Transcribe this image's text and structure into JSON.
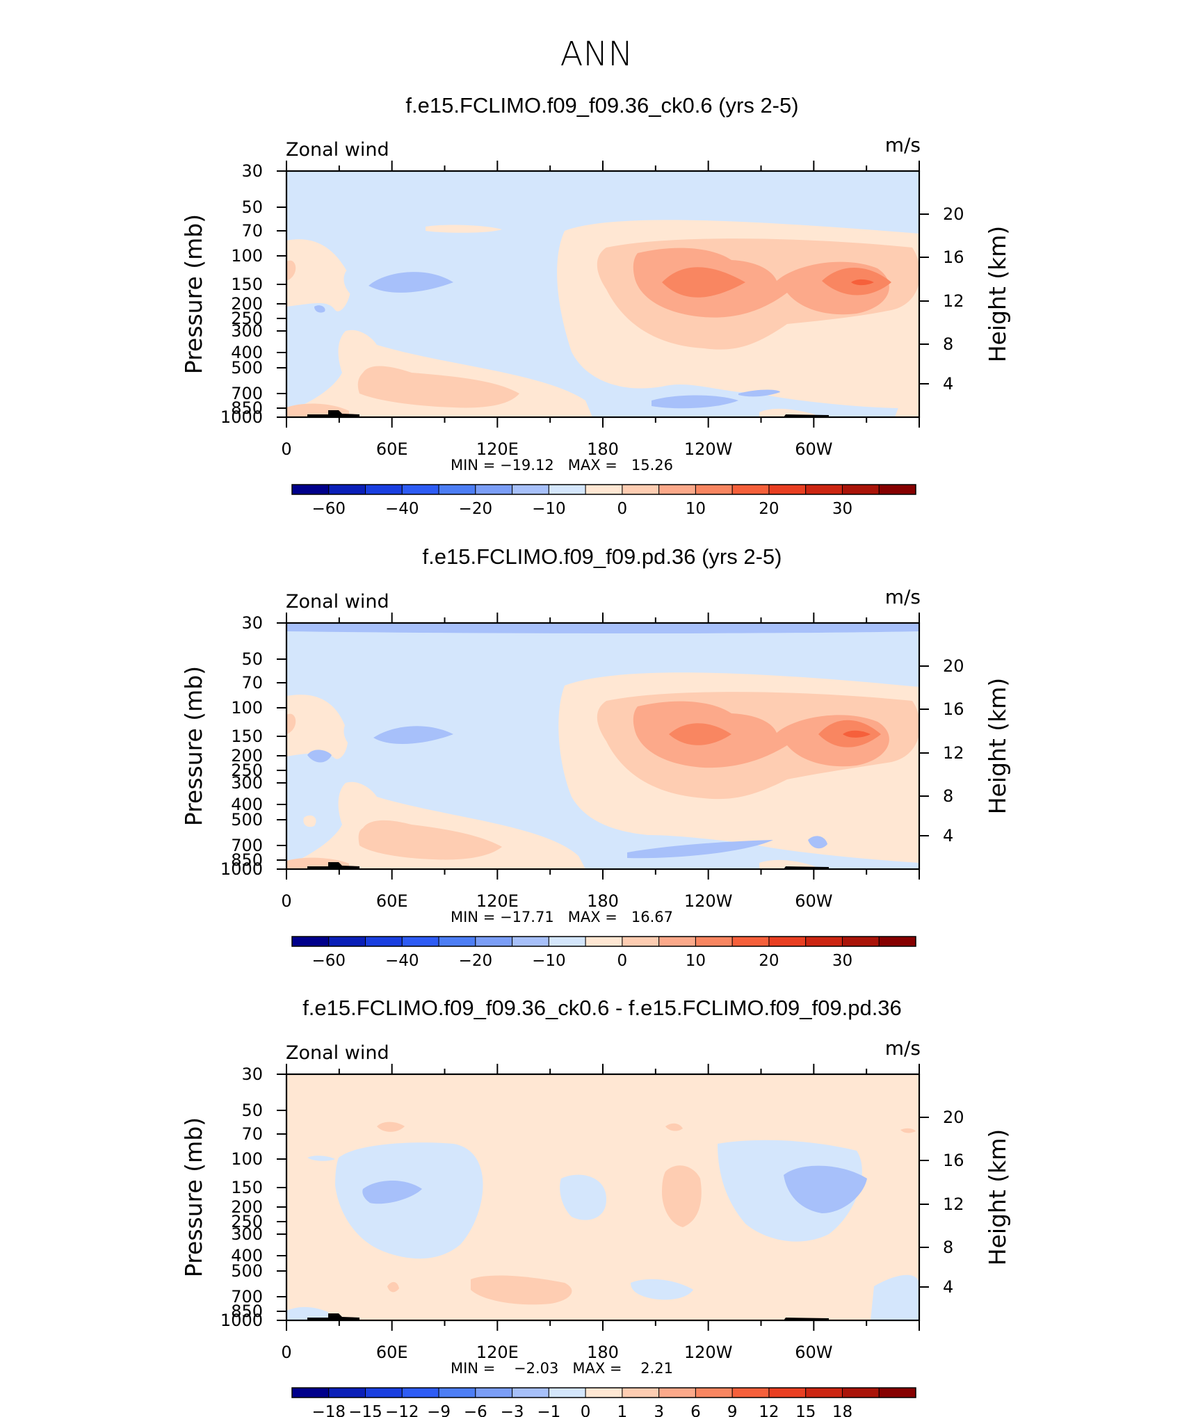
{
  "figure": {
    "title": "ANN"
  },
  "chart_data": [
    {
      "type": "heatmap",
      "title": "f.e15.FCLIMO.f09_f09.36_ck0.6 (yrs 2-5)",
      "left_label": "Zonal wind",
      "right_label": "m/s",
      "ylabel": "Pressure (mb)",
      "y2label": "Height (km)",
      "x_ticks": [
        "0",
        "60E",
        "120E",
        "180",
        "120W",
        "60W"
      ],
      "y_ticks": [
        "30",
        "50",
        "70",
        "100",
        "150",
        "200",
        "250",
        "300",
        "400",
        "500",
        "700",
        "850",
        "1000"
      ],
      "y2_ticks": [
        "20",
        "16",
        "12",
        "8",
        "4"
      ],
      "stats": "MIN = −19.12   MAX =   15.26",
      "colorbar_labels": [
        "−60",
        "−40",
        "−20",
        "−10",
        "0",
        "10",
        "20",
        "30"
      ],
      "colorbar_levels": [
        -70,
        -60,
        -50,
        -40,
        -30,
        -20,
        -15,
        -10,
        -5,
        0,
        5,
        10,
        15,
        20,
        25,
        30,
        35
      ],
      "grid": false
    },
    {
      "type": "heatmap",
      "title": "f.e15.FCLIMO.f09_f09.pd.36 (yrs 2-5)",
      "left_label": "Zonal wind",
      "right_label": "m/s",
      "ylabel": "Pressure (mb)",
      "y2label": "Height (km)",
      "x_ticks": [
        "0",
        "60E",
        "120E",
        "180",
        "120W",
        "60W"
      ],
      "y_ticks": [
        "30",
        "50",
        "70",
        "100",
        "150",
        "200",
        "250",
        "300",
        "400",
        "500",
        "700",
        "850",
        "1000"
      ],
      "y2_ticks": [
        "20",
        "16",
        "12",
        "8",
        "4"
      ],
      "stats": "MIN = −17.71   MAX =   16.67",
      "colorbar_labels": [
        "−60",
        "−40",
        "−20",
        "−10",
        "0",
        "10",
        "20",
        "30"
      ],
      "colorbar_levels": [
        -70,
        -60,
        -50,
        -40,
        -30,
        -20,
        -15,
        -10,
        -5,
        0,
        5,
        10,
        15,
        20,
        25,
        30,
        35
      ],
      "grid": false
    },
    {
      "type": "heatmap",
      "title": "f.e15.FCLIMO.f09_f09.36_ck0.6 - f.e15.FCLIMO.f09_f09.pd.36",
      "left_label": "Zonal wind",
      "right_label": "m/s",
      "ylabel": "Pressure (mb)",
      "y2label": "Height (km)",
      "x_ticks": [
        "0",
        "60E",
        "120E",
        "180",
        "120W",
        "60W"
      ],
      "y_ticks": [
        "30",
        "50",
        "70",
        "100",
        "150",
        "200",
        "250",
        "300",
        "400",
        "500",
        "700",
        "850",
        "1000"
      ],
      "y2_ticks": [
        "20",
        "16",
        "12",
        "8",
        "4"
      ],
      "stats": "MIN =    −2.03   MAX =    2.21",
      "colorbar_labels": [
        "−18",
        "−15",
        "−12",
        "−9",
        "−6",
        "−3",
        "−1",
        "0",
        "1",
        "3",
        "6",
        "9",
        "12",
        "15",
        "18"
      ],
      "colorbar_levels": [
        -21,
        -18,
        -15,
        -12,
        -9,
        -6,
        -3,
        -1,
        0,
        1,
        3,
        6,
        9,
        12,
        15,
        18,
        21
      ],
      "grid": false
    }
  ],
  "colors": {
    "palette": [
      "#00008b",
      "#0a1fb8",
      "#1a3fe0",
      "#2e5cf5",
      "#4d7ef5",
      "#7b9ef7",
      "#a7c0fa",
      "#d4e6fc",
      "#ffe7d3",
      "#fecdb2",
      "#fca98a",
      "#f98661",
      "#f6603b",
      "#e93f22",
      "#cc2612",
      "#aa1409",
      "#860000"
    ]
  }
}
